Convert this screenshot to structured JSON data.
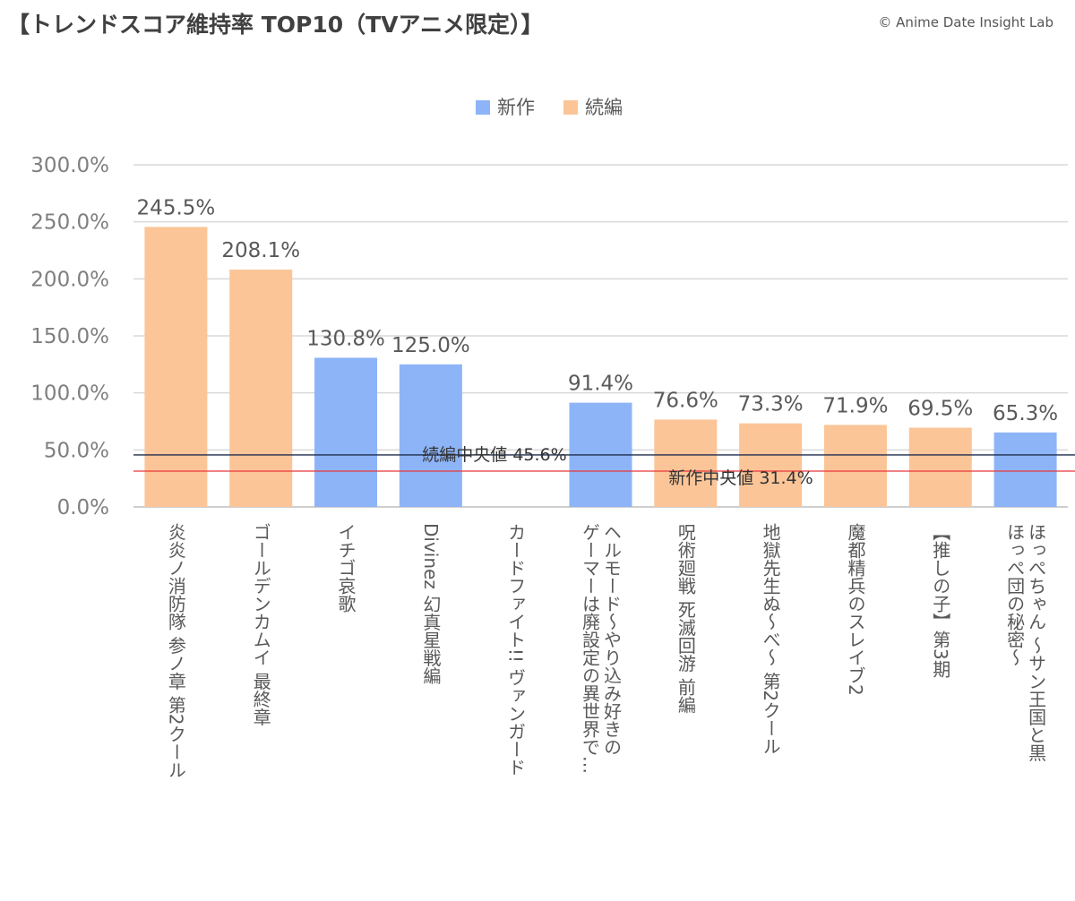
{
  "title": "【トレンドスコア維持率 TOP10（TVアニメ限定）】",
  "credit": "© Anime Date Insight Lab",
  "colors": {
    "新作": "#8db4f7",
    "続編": "#fbc598",
    "series_median_line": "#1f2d4d",
    "new_median_line": "#e8373a",
    "grid": "#d9d9d9"
  },
  "chart_data": {
    "type": "bar",
    "title": "【トレンドスコア維持率 TOP10（TVアニメ限定）】",
    "legend": [
      "新作",
      "続編"
    ],
    "legend_position": "top",
    "categories": [
      "炎炎ノ消防隊 参ノ章 第2クール",
      "ゴールデンカムイ 最終章",
      "イチゴ哀歌",
      "Divinez 幻真星戦編",
      "カードファイト!! ヴァンガード",
      "ヘルモード～やり込み好きの\nゲーマーは廃設定の異世界で…",
      "呪術廻戦 死滅回游 前編",
      "地獄先生ぬ～べ～ 第2クール",
      "魔都精兵のスレイブ2",
      "【推しの子】第3期",
      "ほっぺちゃん ～サン王国と黒\nほっぺ団の秘密～"
    ],
    "bars": [
      {
        "category_index": 0,
        "value": 245.5,
        "label": "245.5%",
        "type": "続編"
      },
      {
        "category_index": 1,
        "value": 208.1,
        "label": "208.1%",
        "type": "続編"
      },
      {
        "category_index": 2,
        "value": 130.8,
        "label": "130.8%",
        "type": "新作"
      },
      {
        "category_index": 3,
        "value": 125.0,
        "label": "125.0%",
        "type": "新作"
      },
      {
        "category_index": 5,
        "value": 91.4,
        "label": "91.4%",
        "type": "新作"
      },
      {
        "category_index": 6,
        "value": 76.6,
        "label": "76.6%",
        "type": "続編"
      },
      {
        "category_index": 7,
        "value": 73.3,
        "label": "73.3%",
        "type": "続編"
      },
      {
        "category_index": 8,
        "value": 71.9,
        "label": "71.9%",
        "type": "続編"
      },
      {
        "category_index": 9,
        "value": 69.5,
        "label": "69.5%",
        "type": "続編"
      },
      {
        "category_index": 10,
        "value": 65.3,
        "label": "65.3%",
        "type": "新作"
      }
    ],
    "reference_lines": [
      {
        "label": "続編中央値 45.6%",
        "value": 45.6,
        "color_key": "series_median_line"
      },
      {
        "label": "新作中央値 31.4%",
        "value": 31.4,
        "color_key": "new_median_line"
      }
    ],
    "yticks": [
      "0.0%",
      "50.0%",
      "100.0%",
      "150.0%",
      "200.0%",
      "250.0%",
      "300.0%"
    ],
    "ylim": [
      0,
      300
    ],
    "grid": true
  }
}
